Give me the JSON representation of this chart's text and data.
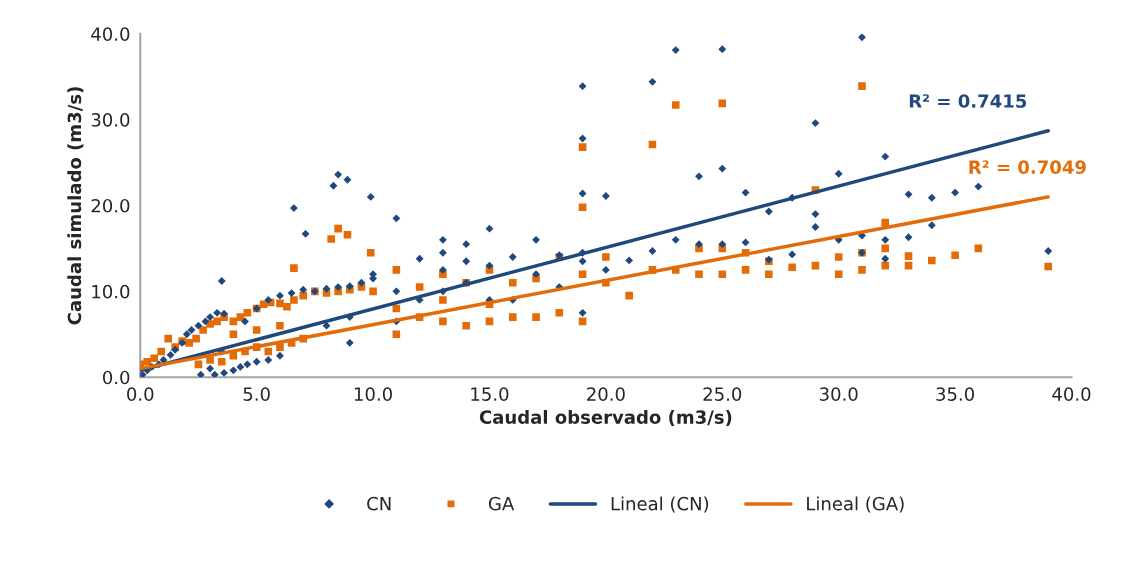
{
  "chart_data": {
    "type": "scatter",
    "xlabel": "Caudal observado (m3/s)",
    "ylabel": "Caudal simulado (m3/s)",
    "xlim": [
      0,
      40
    ],
    "ylim": [
      0,
      40
    ],
    "xticks": [
      {
        "value": 0,
        "label": "0.0"
      },
      {
        "value": 5,
        "label": "5.0"
      },
      {
        "value": 10,
        "label": "10.0"
      },
      {
        "value": 15,
        "label": "15.0"
      },
      {
        "value": 20,
        "label": "20.0"
      },
      {
        "value": 25,
        "label": "25.0"
      },
      {
        "value": 30,
        "label": "30.0"
      },
      {
        "value": 35,
        "label": "35.0"
      },
      {
        "value": 40,
        "label": "40.0"
      }
    ],
    "yticks": [
      {
        "value": 0,
        "label": "0.0"
      },
      {
        "value": 10,
        "label": "10.0"
      },
      {
        "value": 20,
        "label": "20.0"
      },
      {
        "value": 30,
        "label": "30.0"
      },
      {
        "value": 40,
        "label": "40.0"
      }
    ],
    "grid": false,
    "legend": "bottom",
    "series": [
      {
        "name": "CN",
        "marker": "diamond",
        "color": "#1f497d",
        "x": [
          0.1,
          0.3,
          0.5,
          0.8,
          1.0,
          1.3,
          1.5,
          1.8,
          2.0,
          2.2,
          2.5,
          2.8,
          3.0,
          3.3,
          3.6,
          3.0,
          2.6,
          3.2,
          3.6,
          4.0,
          4.3,
          4.6,
          5.0,
          5.5,
          6.0,
          3.5,
          4.5,
          5.0,
          5.5,
          6.0,
          6.5,
          7.0,
          7.5,
          8.0,
          8.5,
          9.0,
          9.5,
          10.0,
          10.0,
          9.0,
          8.0,
          9.0,
          3.5,
          6.6,
          7.1,
          8.3,
          8.5,
          8.9,
          9.9,
          11.0,
          11.0,
          11.0,
          12.0,
          12.0,
          13.0,
          13.0,
          13.0,
          13.0,
          14.0,
          14.0,
          14.0,
          15.0,
          15.0,
          15.0,
          16.0,
          16.0,
          17.0,
          17.0,
          18.0,
          18.0,
          19.0,
          19.0,
          19.0,
          19.0,
          19.0,
          19.0,
          20.0,
          20.0,
          21.0,
          22.0,
          22.0,
          23.0,
          23.0,
          24.0,
          24.0,
          25.0,
          25.0,
          25.0,
          26.0,
          26.0,
          27.0,
          27.0,
          28.0,
          28.0,
          29.0,
          29.0,
          29.0,
          30.0,
          30.0,
          31.0,
          31.0,
          31.0,
          32.0,
          32.0,
          32.0,
          33.0,
          33.0,
          34.0,
          34.0,
          35.0,
          36.0,
          39.0
        ],
        "values": [
          0.3,
          0.8,
          1.2,
          1.5,
          2.0,
          2.6,
          3.2,
          4.0,
          5.0,
          5.5,
          6.0,
          6.5,
          7.0,
          7.5,
          7.4,
          1.0,
          0.3,
          0.3,
          0.5,
          0.8,
          1.2,
          1.5,
          1.8,
          2.0,
          2.5,
          3.0,
          6.5,
          8.0,
          9.0,
          9.5,
          9.8,
          10.2,
          10.0,
          10.3,
          10.5,
          10.6,
          11.0,
          11.5,
          12.0,
          7.0,
          6.0,
          4.0,
          11.2,
          19.7,
          16.7,
          22.3,
          23.6,
          23.0,
          21.0,
          18.5,
          10.0,
          6.5,
          13.8,
          9.0,
          16.0,
          14.5,
          12.5,
          10.0,
          15.5,
          13.5,
          11.0,
          17.3,
          13.0,
          9.0,
          14.0,
          9.0,
          16.0,
          12.0,
          14.2,
          10.5,
          33.9,
          27.8,
          21.4,
          14.5,
          13.5,
          7.5,
          21.1,
          12.5,
          13.6,
          34.4,
          14.7,
          38.1,
          16.0,
          23.4,
          15.5,
          38.2,
          24.3,
          15.5,
          21.5,
          15.7,
          19.3,
          13.7,
          20.9,
          14.3,
          29.6,
          19.0,
          17.5,
          23.7,
          16.0,
          39.6,
          16.5,
          14.5,
          25.7,
          16.0,
          13.8,
          21.3,
          16.3,
          20.9,
          17.7,
          21.5,
          22.2,
          14.7
        ]
      },
      {
        "name": "GA",
        "marker": "square",
        "color": "#e36c09",
        "x": [
          0.0,
          0.3,
          0.6,
          0.9,
          1.2,
          1.5,
          1.8,
          2.1,
          2.4,
          2.7,
          3.0,
          3.3,
          3.6,
          4.0,
          4.3,
          4.6,
          5.0,
          5.3,
          5.6,
          6.0,
          6.3,
          6.6,
          7.0,
          7.5,
          8.0,
          8.5,
          9.0,
          9.5,
          10.0,
          2.5,
          3.0,
          3.5,
          4.0,
          4.5,
          5.0,
          5.5,
          6.0,
          6.5,
          7.0,
          4.0,
          5.0,
          6.0,
          6.6,
          8.2,
          8.5,
          8.9,
          9.9,
          11.0,
          11.0,
          11.0,
          12.0,
          12.0,
          13.0,
          13.0,
          13.0,
          14.0,
          14.0,
          15.0,
          15.0,
          15.0,
          16.0,
          16.0,
          17.0,
          17.0,
          18.0,
          18.0,
          19.0,
          19.0,
          19.0,
          19.0,
          20.0,
          20.0,
          21.0,
          22.0,
          22.0,
          23.0,
          23.0,
          24.0,
          24.0,
          25.0,
          25.0,
          25.0,
          26.0,
          26.0,
          27.0,
          27.0,
          28.0,
          29.0,
          29.0,
          30.0,
          30.0,
          31.0,
          31.0,
          31.0,
          32.0,
          32.0,
          32.0,
          33.0,
          33.0,
          34.0,
          35.0,
          36.0,
          39.0
        ],
        "values": [
          1.5,
          1.8,
          2.2,
          3.0,
          4.5,
          3.5,
          4.2,
          4.0,
          4.5,
          5.5,
          6.2,
          6.5,
          7.0,
          6.5,
          7.0,
          7.5,
          8.0,
          8.5,
          8.7,
          8.6,
          8.2,
          9.0,
          9.5,
          10.0,
          9.8,
          10.0,
          10.2,
          10.5,
          10.0,
          1.5,
          2.0,
          1.8,
          2.5,
          3.0,
          3.5,
          3.0,
          3.5,
          4.0,
          4.5,
          5.0,
          5.5,
          6.0,
          12.7,
          16.1,
          17.3,
          16.6,
          14.5,
          12.5,
          8.0,
          5.0,
          10.5,
          7.0,
          12.0,
          9.0,
          6.5,
          11.0,
          6.0,
          12.5,
          8.5,
          6.5,
          11.0,
          7.0,
          11.5,
          7.0,
          14.0,
          7.5,
          26.8,
          19.8,
          12.0,
          6.5,
          14.0,
          11.0,
          9.5,
          27.1,
          12.5,
          31.7,
          12.5,
          15.0,
          12.0,
          31.9,
          15.0,
          12.0,
          14.5,
          12.5,
          13.5,
          12.0,
          12.8,
          21.8,
          13.0,
          14.0,
          12.0,
          33.9,
          14.5,
          12.5,
          18.0,
          15.0,
          13.0,
          14.1,
          13.0,
          13.6,
          14.2,
          15.0,
          12.9
        ]
      },
      {
        "name": "Lineal (CN)",
        "type": "line",
        "color": "#1f497d",
        "x": [
          0,
          39
        ],
        "values": [
          0.8,
          28.7
        ]
      },
      {
        "name": "Lineal (GA)",
        "type": "line",
        "color": "#e36c09",
        "x": [
          0,
          39
        ],
        "values": [
          1.0,
          21.0
        ]
      }
    ],
    "annotations": [
      {
        "text": "R² = 0.7415",
        "x": 39,
        "y": 28.7
      },
      {
        "text": "R² = 0.7049",
        "x": 39,
        "y": 21.0
      }
    ]
  }
}
